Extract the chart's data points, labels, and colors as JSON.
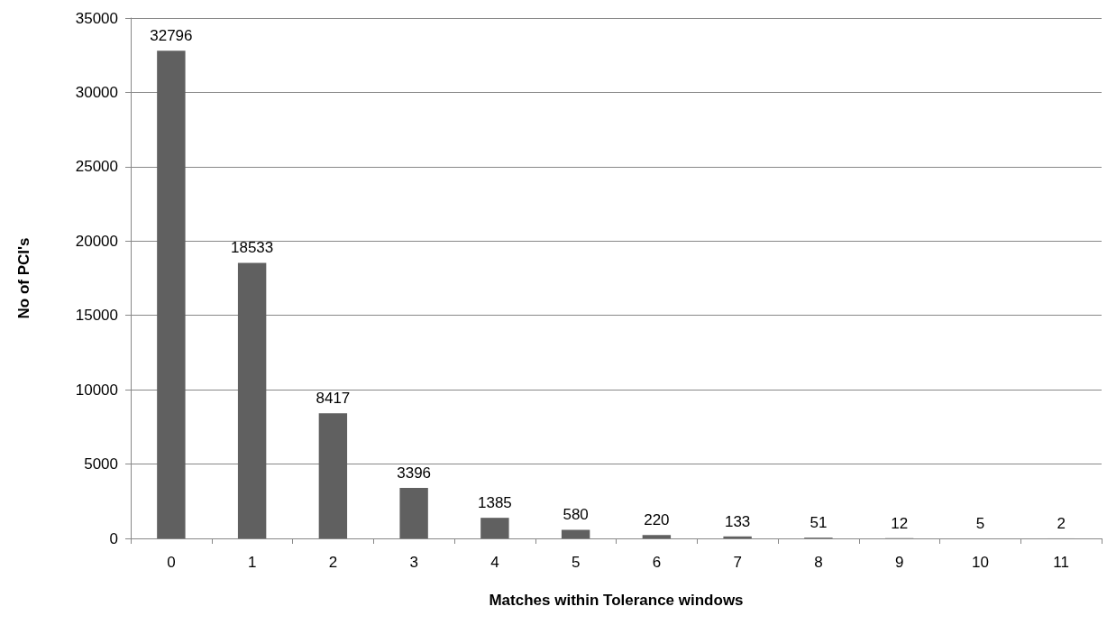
{
  "chart_data": {
    "type": "bar",
    "xlabel": "Matches within Tolerance windows",
    "ylabel": "No of PCI's",
    "categories": [
      "0",
      "1",
      "2",
      "3",
      "4",
      "5",
      "6",
      "7",
      "8",
      "9",
      "10",
      "11"
    ],
    "values": [
      32796,
      18533,
      8417,
      3396,
      1385,
      580,
      220,
      133,
      51,
      12,
      5,
      2
    ],
    "color": "#606060",
    "ylim": [
      0,
      35000
    ],
    "yticks": [
      0,
      5000,
      10000,
      15000,
      20000,
      25000,
      30000,
      35000
    ],
    "grid": "y",
    "data_labels": true
  }
}
